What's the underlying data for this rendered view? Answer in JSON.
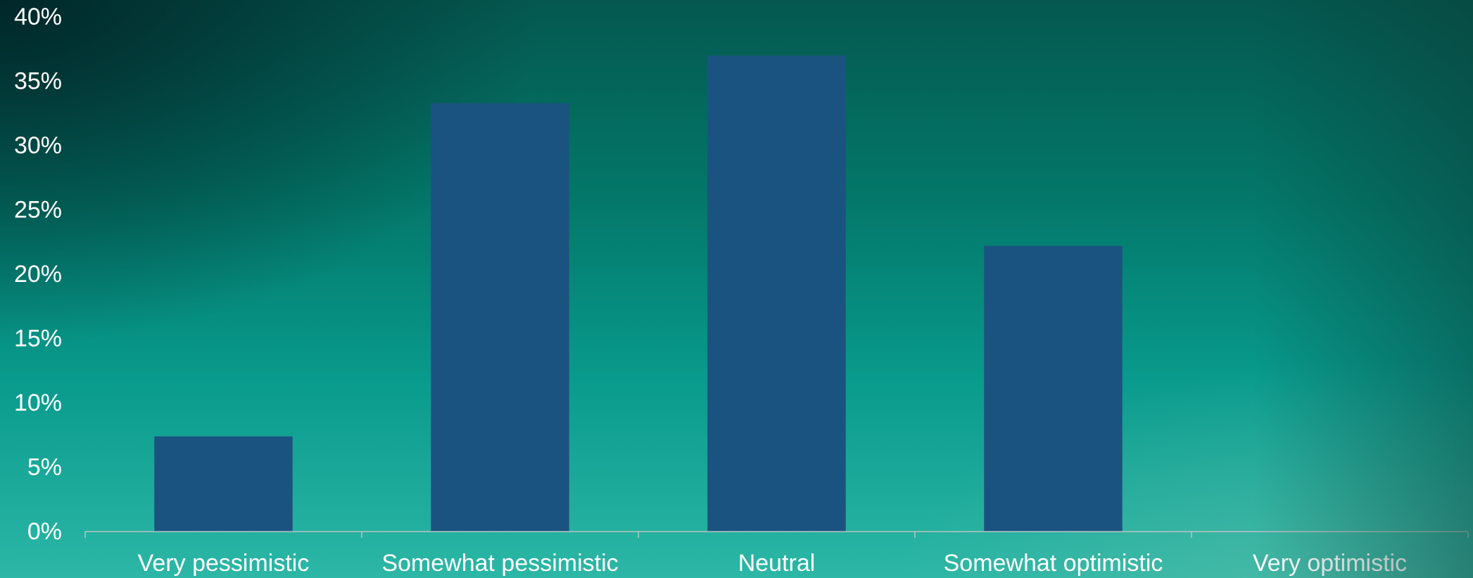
{
  "chart_data": {
    "type": "bar",
    "title": "",
    "xlabel": "",
    "ylabel": "",
    "categories": [
      "Very pessimistic",
      "Somewhat pessimistic",
      "Neutral",
      "Somewhat optimistic",
      "Very optimistic"
    ],
    "values": [
      7.4,
      33.3,
      37.0,
      22.2,
      0
    ],
    "ylim": [
      0,
      40
    ],
    "yticks": [
      "0%",
      "5%",
      "10%",
      "15%",
      "20%",
      "25%",
      "30%",
      "35%",
      "40%"
    ],
    "grid": false,
    "legend": "none",
    "colors": {
      "bar": "#1b5380",
      "axis": "#b9c4c2",
      "text": "#ffffff"
    }
  }
}
